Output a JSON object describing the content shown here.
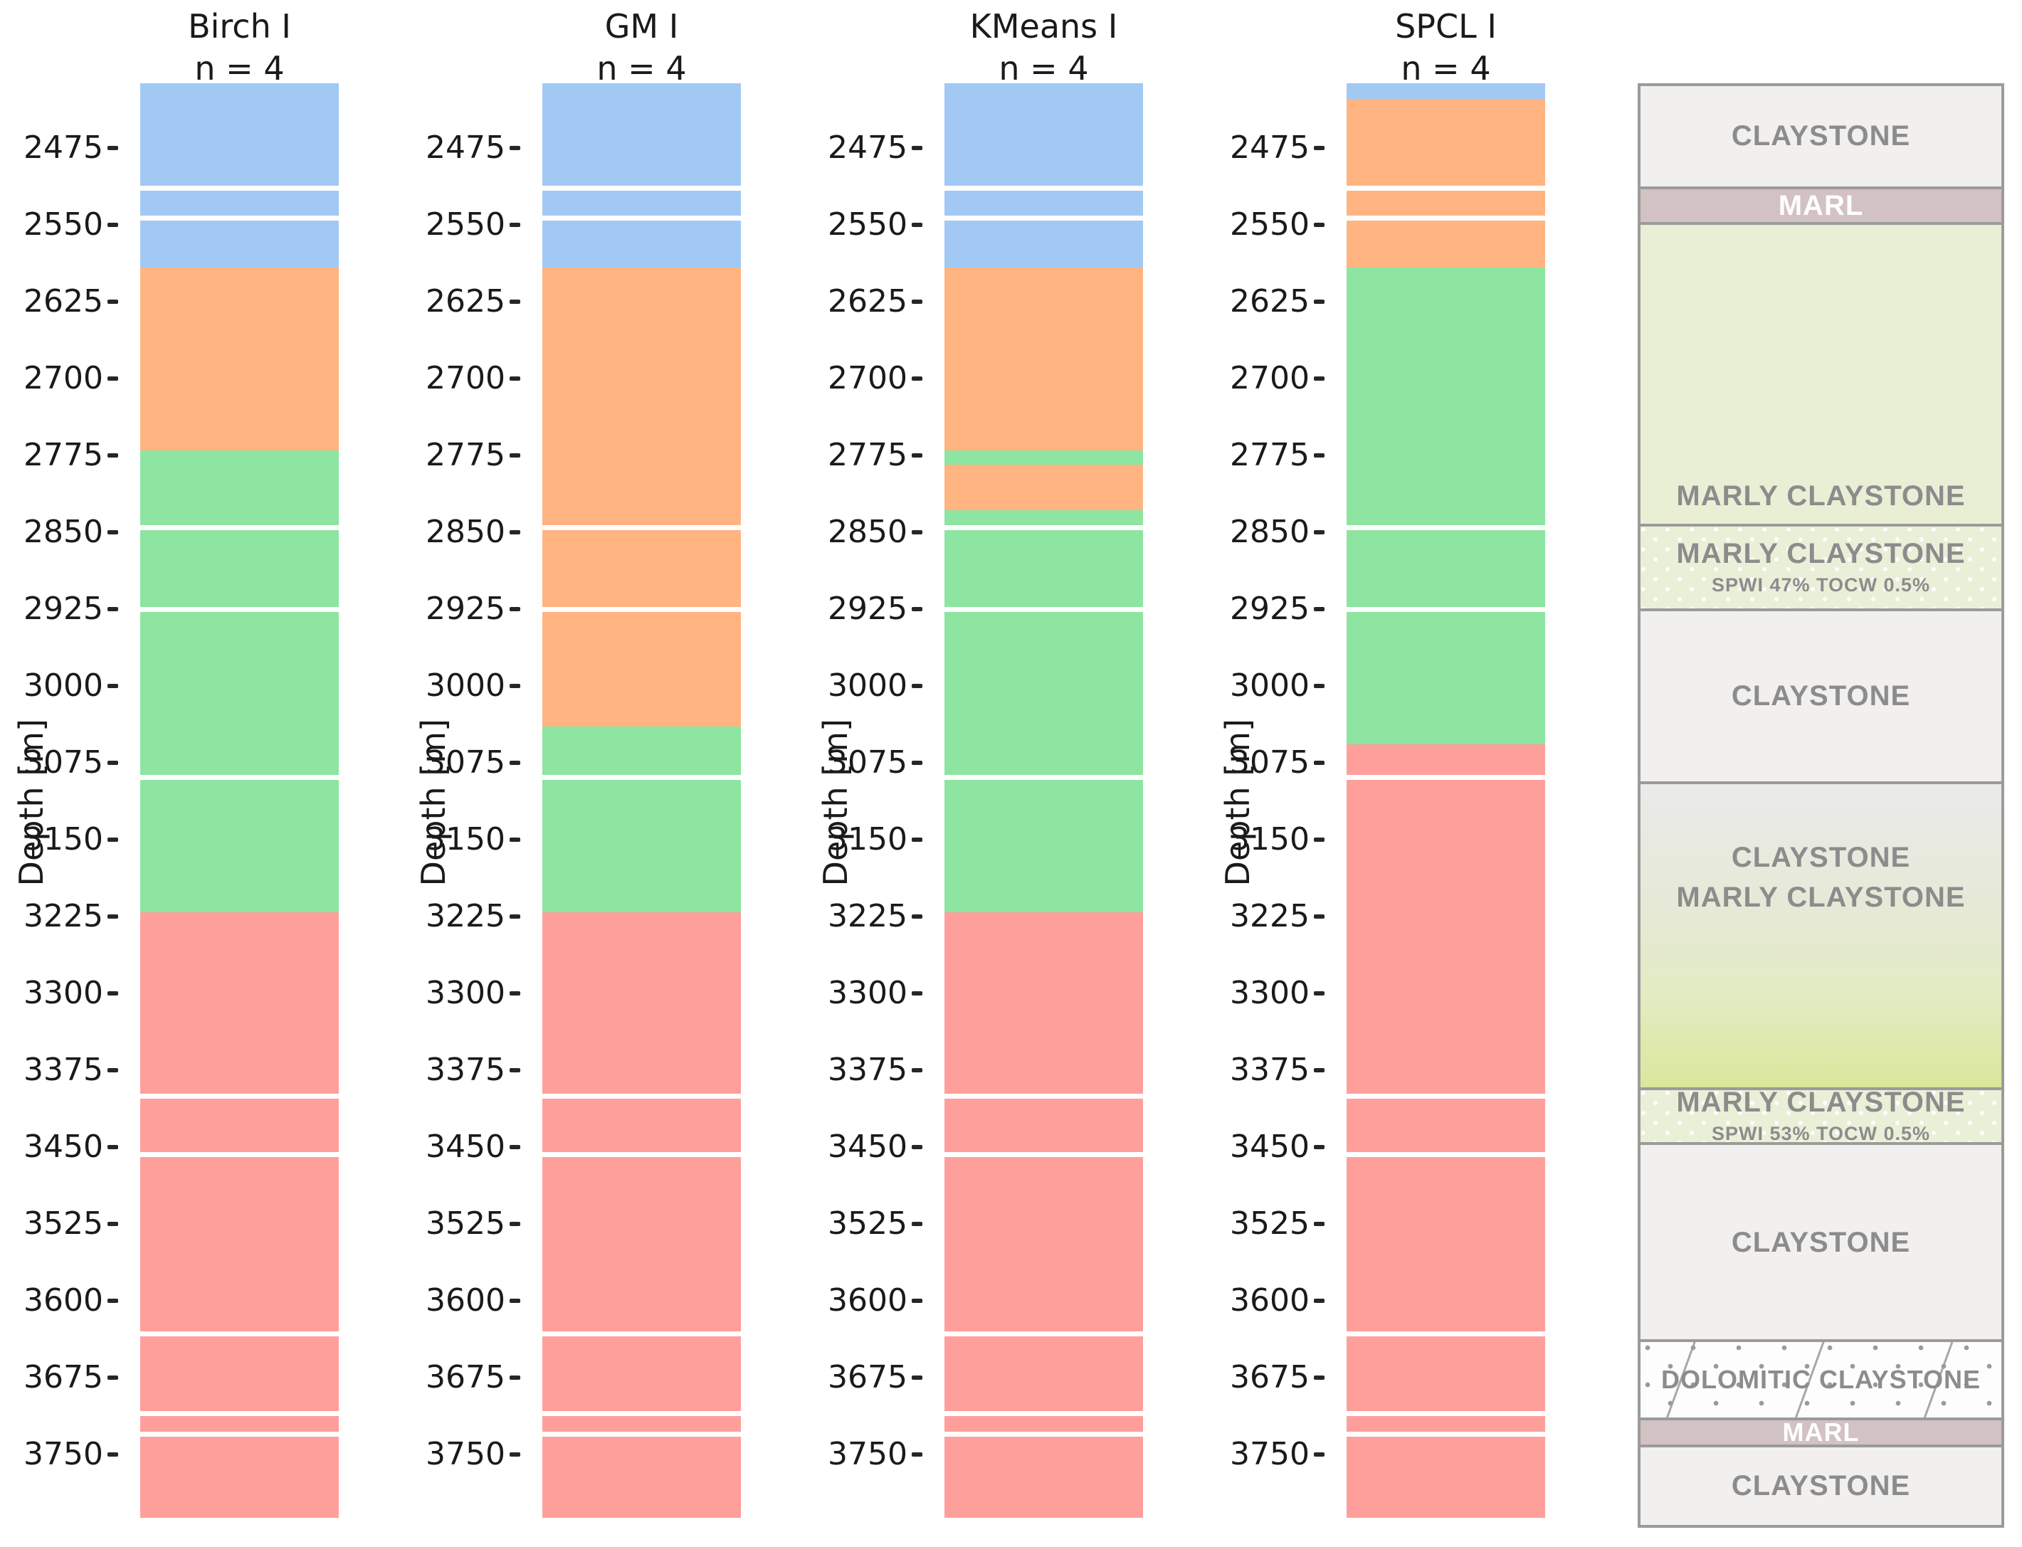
{
  "chart_data": {
    "type": "bar",
    "subtype": "stratigraphic-cluster-columns",
    "depth_axis": {
      "label": "Depth [m]",
      "ticks": [
        2475,
        2550,
        2625,
        2700,
        2775,
        2850,
        2925,
        3000,
        3075,
        3150,
        3225,
        3300,
        3375,
        3450,
        3525,
        3600,
        3675,
        3750
      ],
      "top_depth": 2412,
      "bottom_depth": 3812,
      "orientation": "depth-increases-downward"
    },
    "cluster_colors": {
      "c0": "#a1c9f4",
      "c1": "#ffb482",
      "c2": "#8de5a1",
      "c3": "#ff9f9b"
    },
    "columns": [
      {
        "title": "Birch I",
        "subtitle": "n = 4",
        "segments": [
          {
            "from": 2412,
            "to": 2592,
            "cluster": "c0"
          },
          {
            "from": 2592,
            "to": 2770,
            "cluster": "c1"
          },
          {
            "from": 2770,
            "to": 3221,
            "cluster": "c2"
          },
          {
            "from": 3221,
            "to": 3812,
            "cluster": "c3"
          }
        ]
      },
      {
        "title": "GM I",
        "subtitle": "n = 4",
        "segments": [
          {
            "from": 2412,
            "to": 2592,
            "cluster": "c0"
          },
          {
            "from": 2592,
            "to": 3040,
            "cluster": "c1"
          },
          {
            "from": 3040,
            "to": 3221,
            "cluster": "c2"
          },
          {
            "from": 3221,
            "to": 3812,
            "cluster": "c3"
          }
        ]
      },
      {
        "title": "KMeans I",
        "subtitle": "n = 4",
        "segments": [
          {
            "from": 2412,
            "to": 2592,
            "cluster": "c0"
          },
          {
            "from": 2592,
            "to": 2770,
            "cluster": "c1"
          },
          {
            "from": 2770,
            "to": 2784,
            "cluster": "c2"
          },
          {
            "from": 2784,
            "to": 2829,
            "cluster": "c1"
          },
          {
            "from": 2829,
            "to": 3221,
            "cluster": "c2"
          },
          {
            "from": 3221,
            "to": 3812,
            "cluster": "c3"
          }
        ]
      },
      {
        "title": "SPCL I",
        "subtitle": "n = 4",
        "segments": [
          {
            "from": 2412,
            "to": 2427,
            "cluster": "c0"
          },
          {
            "from": 2427,
            "to": 2592,
            "cluster": "c1"
          },
          {
            "from": 2592,
            "to": 3057,
            "cluster": "c2"
          },
          {
            "from": 3057,
            "to": 3812,
            "cluster": "c3"
          }
        ]
      }
    ],
    "data_gaps_depth": [
      2512,
      2541,
      2843,
      2923,
      3087,
      3398,
      3455,
      3630,
      3708,
      3728
    ],
    "gap_thickness_m": 5
  },
  "lithology_legend": {
    "top_depth": 2412,
    "bottom_depth": 3822,
    "colors": {
      "claystone_bg": "#f1f0ef",
      "marl_bg": "#d2c2c4",
      "marly_claystone_bg": "#e9efd5",
      "marly_dotted_bg": "#eaf0d8",
      "gradient_top": "#eaeae9",
      "gradient_bottom": "#dbe79b",
      "dolomitic_bg": "#fdfdfd",
      "border": "#9b9b99",
      "text_grey": "#8c8c8c",
      "text_white": "#ffffff"
    },
    "sections": [
      {
        "label": "CLAYSTONE",
        "from": 2412,
        "to": 2510,
        "style": "claystone"
      },
      {
        "label": "MARL",
        "from": 2510,
        "to": 2545,
        "style": "marl"
      },
      {
        "label": "MARLY CLAYSTONE",
        "from": 2545,
        "to": 2841,
        "style": "marly"
      },
      {
        "label": "MARLY CLAYSTONE",
        "sublabel": "SPWI 47% TOCW 0.5%",
        "from": 2841,
        "to": 2924,
        "style": "marly-dotted"
      },
      {
        "label": "CLAYSTONE",
        "from": 2924,
        "to": 3093,
        "style": "claystone"
      },
      {
        "label": "CLAYSTONE",
        "label2": "MARLY CLAYSTONE",
        "from": 3093,
        "to": 3393,
        "style": "gradient"
      },
      {
        "label": "MARLY CLAYSTONE",
        "sublabel": "SPWI 53% TOCW 0.5%",
        "from": 3393,
        "to": 3447,
        "style": "marly-dotted"
      },
      {
        "label": "CLAYSTONE",
        "from": 3447,
        "to": 3640,
        "style": "claystone"
      },
      {
        "label": "DOLOMITIC CLAYSTONE",
        "from": 3640,
        "to": 3717,
        "style": "dolomitic"
      },
      {
        "label": "MARL",
        "from": 3717,
        "to": 3743,
        "style": "marl-small"
      },
      {
        "label": "CLAYSTONE",
        "from": 3743,
        "to": 3822,
        "style": "claystone"
      }
    ]
  }
}
